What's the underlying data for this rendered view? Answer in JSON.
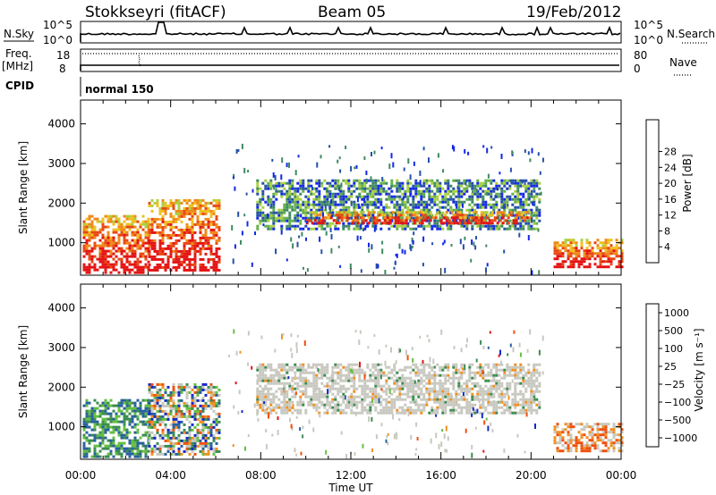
{
  "header": {
    "station": "Stokkseyri (fitACF)",
    "beam": "Beam 05",
    "date": "19/Feb/2012"
  },
  "top_panels": {
    "nsky_label": "N.Sky",
    "nsky_ticks": [
      "10^5",
      "10^0"
    ],
    "nsearch_label": "N.Search",
    "nsearch_ticks": [
      "10^5",
      "10^0"
    ],
    "freq_label": "Freq.",
    "freq_unit": "[MHz]",
    "freq_ticks": [
      "18",
      "8"
    ],
    "nave_label": "Nave",
    "nave_ticks": [
      "80",
      "0"
    ],
    "cpid_label": "CPID",
    "cpid_value": "normal 150"
  },
  "chart_data": [
    {
      "type": "heatmap",
      "name": "power",
      "title": "",
      "xlabel": "Time UT",
      "ylabel": "Slant Range [km]",
      "x_ticks": [
        "00:00",
        "04:00",
        "08:00",
        "12:00",
        "16:00",
        "20:00",
        "00:00"
      ],
      "y_ticks": [
        "1000",
        "2000",
        "3000",
        "4000"
      ],
      "ylim": [
        180,
        4600
      ],
      "xlim_hours": [
        0,
        24
      ],
      "colorbar": {
        "label": "Power [dB]",
        "ticks": [
          "4",
          "8",
          "12",
          "16",
          "20",
          "24",
          "28"
        ],
        "colors": [
          "#1428e8",
          "#2550a8",
          "#3f8a60",
          "#62b04a",
          "#a8d040",
          "#f0c020",
          "#f08818",
          "#e84814",
          "#e41414"
        ]
      },
      "regions": [
        {
          "t0": 0.1,
          "t1": 3.0,
          "r0": 250,
          "r1": 1700,
          "level": "high"
        },
        {
          "t0": 3.0,
          "t1": 6.2,
          "r0": 300,
          "r1": 2100,
          "level": "high"
        },
        {
          "t0": 7.8,
          "t1": 20.4,
          "r0": 1350,
          "r1": 2600,
          "level": "mid"
        },
        {
          "t0": 10.0,
          "t1": 20.0,
          "r0": 1500,
          "r1": 1800,
          "level": "high"
        },
        {
          "t0": 21.0,
          "t1": 24.0,
          "r0": 400,
          "r1": 1100,
          "level": "high"
        }
      ]
    },
    {
      "type": "heatmap",
      "name": "velocity",
      "title": "",
      "xlabel": "Time UT",
      "ylabel": "Slant Range [km]",
      "x_ticks": [
        "00:00",
        "04:00",
        "08:00",
        "12:00",
        "16:00",
        "20:00",
        "00:00"
      ],
      "y_ticks": [
        "1000",
        "2000",
        "3000",
        "4000"
      ],
      "ylim": [
        180,
        4600
      ],
      "xlim_hours": [
        0,
        24
      ],
      "colorbar": {
        "label": "Velocity [m s⁻¹]",
        "ticks": [
          "1000",
          "500",
          "100",
          "25",
          "−25",
          "−100",
          "−500",
          "−1000"
        ],
        "colors": [
          "#1428c8",
          "#2860a0",
          "#3c8c50",
          "#64c040",
          "#c8c8c0",
          "#c8c8c0",
          "#f09020",
          "#f05010",
          "#e41414"
        ]
      },
      "regions": [
        {
          "t0": 0.1,
          "t1": 3.0,
          "r0": 250,
          "r1": 1700,
          "level": "pos"
        },
        {
          "t0": 3.0,
          "t1": 6.2,
          "r0": 300,
          "r1": 2100,
          "level": "mixed"
        },
        {
          "t0": 7.8,
          "t1": 20.4,
          "r0": 1350,
          "r1": 2600,
          "level": "ground"
        },
        {
          "t0": 21.0,
          "t1": 24.0,
          "r0": 400,
          "r1": 1100,
          "level": "neg"
        }
      ]
    }
  ]
}
